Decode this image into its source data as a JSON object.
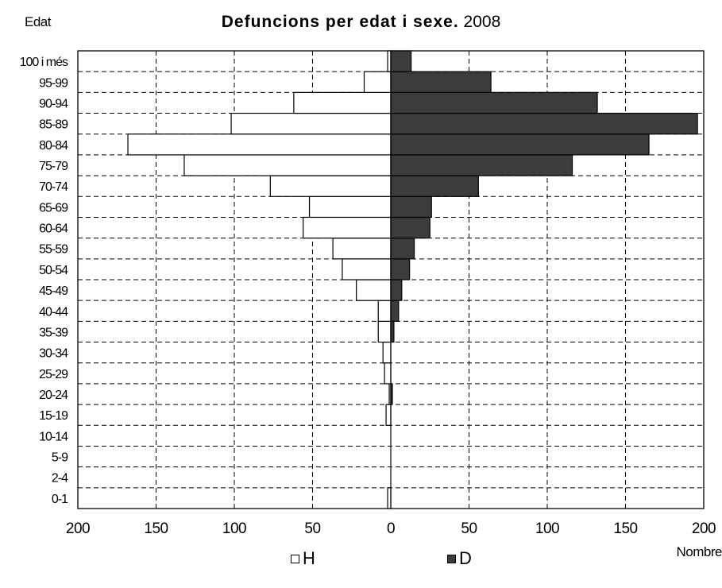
{
  "chart_data": {
    "type": "bar",
    "subtype": "population-pyramid",
    "title": "Defuncions per edat i sexe.",
    "title_year": "2008",
    "ylabel": "Edat",
    "xlabel": "Nombre",
    "categories": [
      "0-1",
      "2-4",
      "5-9",
      "10-14",
      "15-19",
      "20-24",
      "25-29",
      "30-34",
      "35-39",
      "40-44",
      "45-49",
      "50-54",
      "55-59",
      "60-64",
      "65-69",
      "70-74",
      "75-79",
      "80-84",
      "85-89",
      "90-94",
      "95-99",
      "100 i més"
    ],
    "series": [
      {
        "name": "H",
        "color": "#ffffff",
        "side": "left",
        "values": [
          2,
          0,
          0,
          0,
          3,
          1,
          4,
          5,
          8,
          8,
          22,
          31,
          37,
          56,
          52,
          77,
          132,
          168,
          102,
          62,
          17,
          2
        ]
      },
      {
        "name": "D",
        "color": "#3c3c3c",
        "side": "right",
        "values": [
          0,
          0,
          0,
          0,
          0,
          1,
          0,
          0,
          2,
          5,
          7,
          12,
          15,
          25,
          26,
          56,
          116,
          165,
          196,
          132,
          64,
          13
        ]
      }
    ],
    "xlim": [
      -200,
      200
    ],
    "xticks": [
      -200,
      -150,
      -100,
      -50,
      0,
      50,
      100,
      150,
      200
    ],
    "xtick_labels": [
      "200",
      "150",
      "100",
      "50",
      "0",
      "50",
      "100",
      "150",
      "200"
    ],
    "grid": true,
    "legend_position": "bottom"
  }
}
